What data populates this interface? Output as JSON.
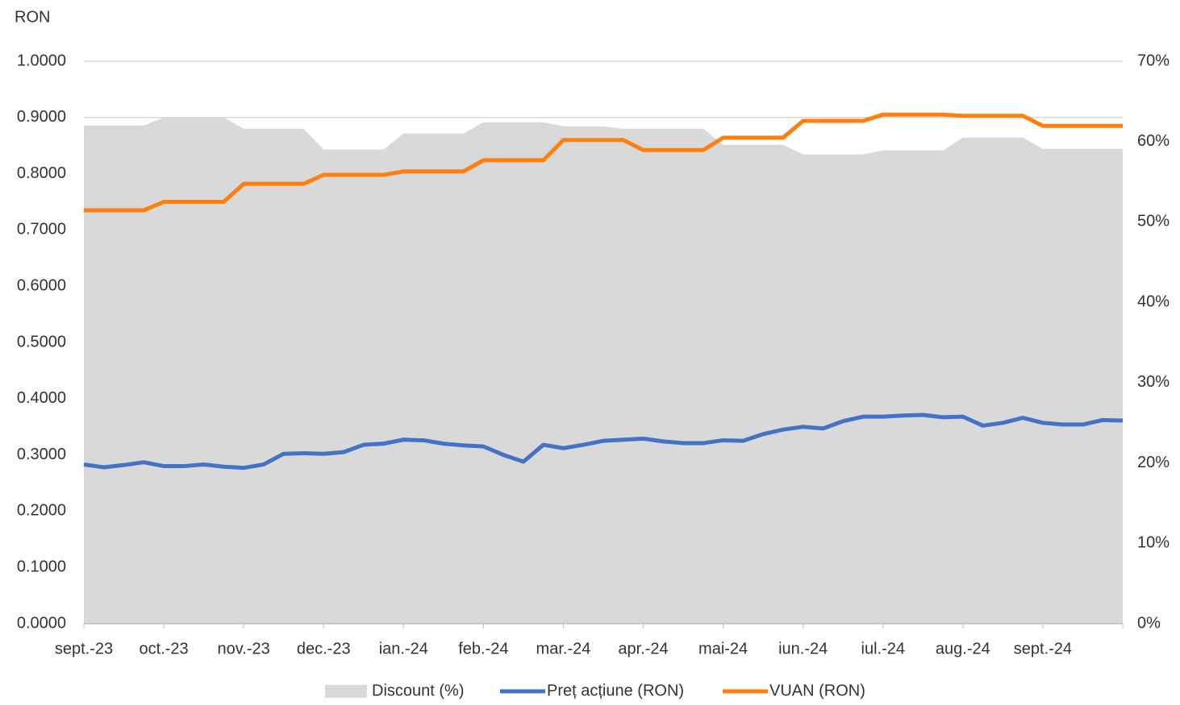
{
  "chart_data": {
    "type": "line",
    "y_label": "RON",
    "categories": [
      "sept.-23",
      null,
      null,
      null,
      "oct.-23",
      null,
      null,
      null,
      "nov.-23",
      null,
      null,
      null,
      "dec.-23",
      null,
      null,
      null,
      "ian.-24",
      null,
      null,
      null,
      "feb.-24",
      null,
      null,
      null,
      "mar.-24",
      null,
      null,
      null,
      "apr.-24",
      null,
      null,
      null,
      "mai-24",
      null,
      null,
      null,
      "iun.-24",
      null,
      null,
      null,
      "iul.-24",
      null,
      null,
      null,
      "aug.-24",
      null,
      null,
      null,
      "sept.-24",
      null,
      null,
      null,
      null
    ],
    "series": [
      {
        "name": "Discount (%)",
        "kind": "area",
        "axis": "y2",
        "color": "#d9d9d9",
        "values": [
          62.0,
          62.0,
          62.0,
          62.0,
          63.0,
          63.0,
          63.0,
          63.0,
          61.6,
          61.6,
          61.6,
          61.6,
          59.0,
          59.0,
          59.0,
          59.0,
          61.0,
          61.0,
          61.0,
          61.0,
          62.4,
          62.4,
          62.4,
          62.4,
          61.9,
          61.9,
          61.9,
          61.6,
          61.6,
          61.6,
          61.6,
          61.6,
          59.6,
          59.6,
          59.6,
          59.6,
          58.4,
          58.4,
          58.4,
          58.4,
          58.9,
          58.9,
          58.9,
          58.9,
          60.5,
          60.5,
          60.5,
          60.5,
          59.1,
          59.1,
          59.1,
          59.1,
          59.1
        ]
      },
      {
        "name": "Preț acțiune (RON)",
        "kind": "line",
        "color": "#4472c4",
        "values": [
          0.283,
          0.278,
          0.282,
          0.287,
          0.28,
          0.28,
          0.283,
          0.279,
          0.277,
          0.283,
          0.302,
          0.303,
          0.302,
          0.305,
          0.318,
          0.32,
          0.327,
          0.326,
          0.32,
          0.317,
          0.315,
          0.3,
          0.288,
          0.318,
          0.312,
          0.318,
          0.325,
          0.327,
          0.329,
          0.324,
          0.321,
          0.321,
          0.326,
          0.325,
          0.337,
          0.345,
          0.35,
          0.347,
          0.36,
          0.368,
          0.368,
          0.37,
          0.371,
          0.367,
          0.368,
          0.352,
          0.357,
          0.366,
          0.357,
          0.354,
          0.354,
          0.362,
          0.361
        ]
      },
      {
        "name": "VUAN (RON)",
        "kind": "line",
        "color": "#ff7f0e",
        "values": [
          0.735,
          0.735,
          0.735,
          0.735,
          0.75,
          0.75,
          0.75,
          0.75,
          0.782,
          0.782,
          0.782,
          0.782,
          0.798,
          0.798,
          0.798,
          0.798,
          0.804,
          0.804,
          0.804,
          0.804,
          0.824,
          0.824,
          0.824,
          0.824,
          0.86,
          0.86,
          0.86,
          0.86,
          0.842,
          0.842,
          0.842,
          0.842,
          0.864,
          0.864,
          0.864,
          0.864,
          0.894,
          0.894,
          0.894,
          0.894,
          0.905,
          0.905,
          0.905,
          0.905,
          0.903,
          0.903,
          0.903,
          0.903,
          0.885,
          0.885,
          0.885,
          0.885,
          0.885
        ]
      }
    ],
    "ylim": [
      0,
      1
    ],
    "yticks": [
      {
        "value": 0,
        "label": "0.0000"
      },
      {
        "value": 0.1,
        "label": "0.1000"
      },
      {
        "value": 0.2,
        "label": "0.2000"
      },
      {
        "value": 0.3,
        "label": "0.3000"
      },
      {
        "value": 0.4,
        "label": "0.4000"
      },
      {
        "value": 0.5,
        "label": "0.5000"
      },
      {
        "value": 0.6,
        "label": "0.6000"
      },
      {
        "value": 0.7,
        "label": "0.7000"
      },
      {
        "value": 0.8,
        "label": "0.8000"
      },
      {
        "value": 0.9,
        "label": "0.9000"
      },
      {
        "value": 1,
        "label": "1.0000"
      }
    ],
    "y2lim": [
      0,
      70
    ],
    "y2ticks": [
      {
        "value": 0,
        "label": "0%"
      },
      {
        "value": 10,
        "label": "10%"
      },
      {
        "value": 20,
        "label": "20%"
      },
      {
        "value": 30,
        "label": "30%"
      },
      {
        "value": 40,
        "label": "40%"
      },
      {
        "value": 50,
        "label": "50%"
      },
      {
        "value": 60,
        "label": "60%"
      },
      {
        "value": 70,
        "label": "70%"
      }
    ],
    "grid": true,
    "legend": "bottom"
  }
}
